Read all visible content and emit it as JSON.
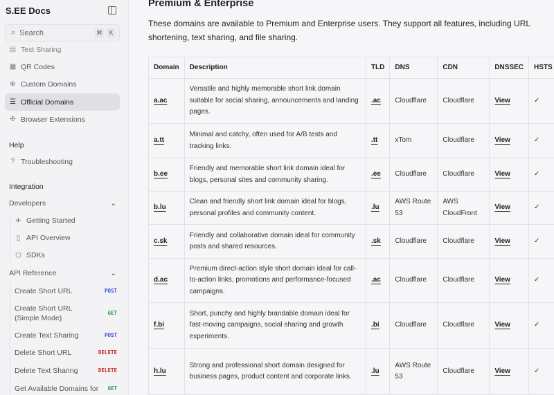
{
  "sidebar": {
    "brand": "S.EE Docs",
    "search": {
      "placeholder": "Search",
      "kbd": [
        "⌘",
        "K"
      ]
    },
    "items": [
      {
        "label": "Text Sharing",
        "icon": "file-text-icon"
      },
      {
        "label": "QR Codes",
        "icon": "qr-code-icon"
      },
      {
        "label": "Custom Domains",
        "icon": "globe-icon"
      },
      {
        "label": "Official Domains",
        "icon": "server-icon",
        "active": true
      },
      {
        "label": "Browser Extensions",
        "icon": "puzzle-icon"
      }
    ],
    "help": {
      "title": "Help",
      "items": [
        {
          "label": "Troubleshooting",
          "icon": "help-circle-icon"
        }
      ]
    },
    "integration": {
      "title": "Integration",
      "developers": "Developers",
      "dev_items": [
        {
          "label": "Getting Started",
          "icon": "rocket-icon"
        },
        {
          "label": "API Overview",
          "icon": "book-icon"
        },
        {
          "label": "SDKs",
          "icon": "package-icon"
        }
      ],
      "api_ref": "API Reference",
      "api_items": [
        {
          "label": "Create Short URL",
          "method": "POST"
        },
        {
          "label": "Create Short URL (Simple Mode)",
          "method": "GET"
        },
        {
          "label": "Create Text Sharing",
          "method": "POST"
        },
        {
          "label": "Delete Short URL",
          "method": "DELETE"
        },
        {
          "label": "Delete Text Sharing",
          "method": "DELETE"
        },
        {
          "label": "Get Available Domains for",
          "method": "GET"
        }
      ]
    },
    "method_colors": {
      "POST": "#3b4fd8",
      "GET": "#3a9a4a",
      "DELETE": "#c62828"
    }
  },
  "main": {
    "title": "Premium & Enterprise",
    "intro": "These domains are available to Premium and Enterprise users. They support all features, including URL shortening, text sharing, and file sharing.",
    "table": {
      "headers": [
        "Domain",
        "Description",
        "TLD",
        "DNS",
        "CDN",
        "DNSSEC",
        "HSTS"
      ],
      "rows": [
        [
          "a.ac",
          "Versatile and highly memorable short link domain suitable for social sharing, announcements and landing pages.",
          ".ac",
          "Cloudflare",
          "Cloudflare",
          "View",
          "✓"
        ],
        [
          "a.tt",
          "Minimal and catchy, often used for A/B tests and tracking links.",
          ".tt",
          "xTom",
          "Cloudflare",
          "View",
          "✓"
        ],
        [
          "b.ee",
          "Friendly and memorable short link domain ideal for blogs, personal sites and community sharing.",
          ".ee",
          "Cloudflare",
          "Cloudflare",
          "View",
          "✓"
        ],
        [
          "b.lu",
          "Clean and friendly short link domain ideal for blogs, personal profiles and community content.",
          ".lu",
          "AWS Route 53",
          "AWS CloudFront",
          "View",
          "✓"
        ],
        [
          "c.sk",
          "Friendly and collaborative domain ideal for community posts and shared resources.",
          ".sk",
          "Cloudflare",
          "Cloudflare",
          "View",
          "✓"
        ],
        [
          "d.ac",
          "Premium direct-action style short domain ideal for call-to-action links, promotions and performance-focused campaigns.",
          ".ac",
          "Cloudflare",
          "Cloudflare",
          "View",
          "✓"
        ],
        [
          "f.bi",
          "Short, punchy and highly brandable domain ideal for fast-moving campaigns, social sharing and growth experiments.",
          ".bi",
          "Cloudflare",
          "Cloudflare",
          "View",
          "✓"
        ],
        [
          "h.lu",
          "Strong and professional short domain designed for business pages, product content and corporate links.",
          ".lu",
          "AWS Route 53",
          "Cloudflare",
          "View",
          "✓"
        ]
      ]
    }
  }
}
